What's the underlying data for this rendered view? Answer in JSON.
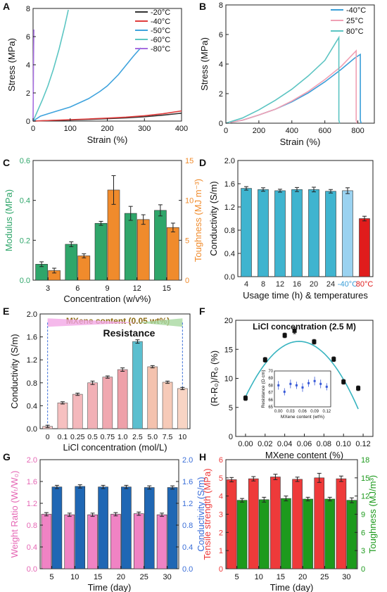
{
  "chart_data": [
    {
      "panel": "A",
      "type": "line",
      "xlabel": "Strain (%)",
      "ylabel": "Stress (MPa)",
      "xlim": [
        0,
        400
      ],
      "ylim": [
        0,
        8
      ],
      "xticks": [
        0,
        100,
        200,
        300,
        400
      ],
      "yticks": [
        0,
        2,
        4,
        6,
        8
      ],
      "legend": "top-right",
      "series": [
        {
          "name": "-20°C",
          "color": "#333333",
          "x": [
            0,
            50,
            100,
            150,
            200,
            250,
            300,
            350,
            400
          ],
          "y": [
            0,
            0.04,
            0.08,
            0.12,
            0.17,
            0.23,
            0.31,
            0.42,
            0.56
          ]
        },
        {
          "name": "-40°C",
          "color": "#e03c3c",
          "x": [
            0,
            50,
            100,
            150,
            200,
            250,
            300,
            350,
            400
          ],
          "y": [
            0,
            0.05,
            0.1,
            0.15,
            0.21,
            0.28,
            0.38,
            0.52,
            0.72
          ]
        },
        {
          "name": "-50°C",
          "color": "#3fa3dd",
          "x": [
            0,
            20,
            50,
            100,
            150,
            180,
            200,
            230,
            270,
            290
          ],
          "y": [
            0,
            0.35,
            0.6,
            1.0,
            1.6,
            2.1,
            2.5,
            3.3,
            4.6,
            5.2
          ]
        },
        {
          "name": "-60°C",
          "color": "#5cc6c3",
          "x": [
            0,
            10,
            25,
            40,
            55,
            70,
            85,
            95
          ],
          "y": [
            0,
            0.6,
            1.5,
            2.5,
            3.7,
            5.1,
            6.7,
            7.9
          ]
        },
        {
          "name": "-80°C",
          "color": "#a66ee0",
          "x": [
            0,
            0.5,
            1,
            1.5,
            2
          ],
          "y": [
            0,
            1.8,
            3.6,
            5.2,
            6.5
          ]
        }
      ]
    },
    {
      "panel": "B",
      "type": "line",
      "xlabel": "Strain (%)",
      "ylabel": "Stress (MPa)",
      "xlim": [
        0,
        900
      ],
      "ylim": [
        0,
        8
      ],
      "xticks": [
        0,
        200,
        400,
        600,
        800
      ],
      "yticks": [
        0,
        2,
        4,
        6,
        8
      ],
      "legend": "top-right",
      "series": [
        {
          "name": "-40°C",
          "color": "#3a9ed8",
          "x": [
            0,
            100,
            200,
            300,
            400,
            500,
            600,
            700,
            780,
            815,
            815,
            820
          ],
          "y": [
            0,
            0.2,
            0.55,
            0.95,
            1.45,
            2.05,
            2.8,
            3.65,
            4.4,
            4.65,
            0.2,
            0
          ]
        },
        {
          "name": "25°C",
          "color": "#f0a0b4",
          "x": [
            0,
            100,
            200,
            300,
            400,
            500,
            600,
            700,
            790,
            790,
            795
          ],
          "y": [
            0,
            0.2,
            0.55,
            0.95,
            1.5,
            2.15,
            2.95,
            3.85,
            4.9,
            0.2,
            0
          ]
        },
        {
          "name": "80°C",
          "color": "#5cc4c2",
          "x": [
            0,
            100,
            200,
            300,
            400,
            500,
            600,
            685,
            685,
            690
          ],
          "y": [
            0,
            0.35,
            0.9,
            1.55,
            2.3,
            3.2,
            4.25,
            5.8,
            0.2,
            0
          ]
        }
      ]
    },
    {
      "panel": "C",
      "type": "bar",
      "xlabel": "Concentration (w/v%)",
      "ylabel": "Modulus (MPa)",
      "y2label": "Toughness (MJ m⁻³)",
      "categories": [
        "3",
        "6",
        "9",
        "12",
        "15"
      ],
      "ylim": [
        0,
        0.6
      ],
      "y2lim": [
        0,
        15
      ],
      "yticks": [
        "0.0",
        "0.2",
        "0.4",
        "0.6"
      ],
      "y2ticks": [
        "0",
        "5",
        "10",
        "15"
      ],
      "series": [
        {
          "name": "Modulus",
          "axis": "left",
          "color": "#2fa66a",
          "values": [
            0.08,
            0.18,
            0.285,
            0.335,
            0.35
          ],
          "errors": [
            0.012,
            0.012,
            0.01,
            0.035,
            0.028
          ]
        },
        {
          "name": "Toughness",
          "axis": "right",
          "color": "#f08b2c",
          "values": [
            1.2,
            3.05,
            11.3,
            7.6,
            6.6
          ],
          "errors": [
            0.3,
            0.25,
            1.8,
            0.6,
            0.55
          ]
        }
      ]
    },
    {
      "panel": "D",
      "type": "bar",
      "xlabel": "Usage time (h) & temperatures",
      "ylabel": "Conductivity (S/m)",
      "categories": [
        "4",
        "8",
        "12",
        "16",
        "20",
        "24",
        "-40°C",
        "80°C"
      ],
      "category_colors": [
        "#3fb4cf",
        "#3fb4cf",
        "#3fb4cf",
        "#3fb4cf",
        "#3fb4cf",
        "#3fb4cf",
        "#9ad2f0",
        "#e01c1c"
      ],
      "label_colors": [
        "#222222",
        "#222222",
        "#222222",
        "#222222",
        "#222222",
        "#222222",
        "#3a9ed8",
        "#e01c1c"
      ],
      "ylim": [
        0,
        2.0
      ],
      "yticks": [
        "0.0",
        "0.4",
        "0.8",
        "1.2",
        "1.6",
        "2.0"
      ],
      "values": [
        1.52,
        1.5,
        1.48,
        1.5,
        1.5,
        1.47,
        1.48,
        1.0
      ],
      "errors": [
        0.03,
        0.03,
        0.025,
        0.035,
        0.04,
        0.03,
        0.05,
        0.04
      ]
    },
    {
      "panel": "E",
      "type": "bar",
      "xlabel": "LiCl concentration (mol/L)",
      "ylabel": "Conductivity (S/m)",
      "annotation": "MXene content (0.05 wt%)",
      "annotation2": "Resistance",
      "categories": [
        "0",
        "0.1",
        "0.25",
        "0.5",
        "0.75",
        "1.0",
        "2.5",
        "5.0",
        "7.5",
        "10"
      ],
      "ylim": [
        0,
        2.0
      ],
      "yticks": [
        "0.0",
        "0.4",
        "0.8",
        "1.2",
        "1.6",
        "2.0"
      ],
      "values": [
        0.04,
        0.45,
        0.6,
        0.8,
        0.9,
        1.03,
        1.52,
        1.08,
        0.81,
        0.7
      ],
      "errors": [
        0.02,
        0.02,
        0.02,
        0.03,
        0.02,
        0.03,
        0.03,
        0.02,
        0.02,
        0.02
      ],
      "bar_colors": [
        "#f6c8c8",
        "#f6c0c0",
        "#f4b8bc",
        "#f2b0b6",
        "#f0a8b0",
        "#eea0a9",
        "#5bbfcf",
        "#f4c2ae",
        "#f6cab8",
        "#f8d4c4"
      ]
    },
    {
      "panel": "F",
      "type": "scatter",
      "title": "LiCl concentration (2.5 M)",
      "xlabel": "MXene content (%)",
      "ylabel": "(R-R₀)/R₀ (%)",
      "xlim": [
        -0.01,
        0.13
      ],
      "ylim": [
        0,
        20
      ],
      "xticks": [
        "0.00",
        "0.02",
        "0.04",
        "0.06",
        "0.08",
        "0.10",
        "0.12"
      ],
      "yticks": [
        "0",
        "5",
        "10",
        "15",
        "20"
      ],
      "x": [
        0.0,
        0.02,
        0.04,
        0.05,
        0.07,
        0.09,
        0.1,
        0.115
      ],
      "y": [
        6.6,
        13.2,
        17.4,
        18.2,
        16.3,
        13.3,
        9.4,
        8.3
      ],
      "errors": [
        0.4,
        0.4,
        0.4,
        0.5,
        0.4,
        0.4,
        0.4,
        0.4
      ],
      "fit_color": "#38b4c0",
      "inset": {
        "xlabel": "MXene content (wt%)",
        "ylabel": "Resistance (Ω·cm)",
        "xticks": [
          "0.00",
          "0.03",
          "0.06",
          "0.09",
          "0.12"
        ],
        "yticks": [
          "65",
          "66",
          "67",
          "68",
          "69",
          "70"
        ],
        "x": [
          0.0,
          0.015,
          0.03,
          0.045,
          0.06,
          0.075,
          0.09,
          0.105,
          0.12
        ],
        "y": [
          68.0,
          67.1,
          68.2,
          68.0,
          67.7,
          68.3,
          68.6,
          68.2,
          67.8
        ],
        "errors": [
          0.6,
          0.5,
          0.6,
          0.5,
          0.6,
          0.5,
          0.6,
          0.6,
          0.5
        ]
      }
    },
    {
      "panel": "G",
      "type": "bar",
      "xlabel": "Time (day)",
      "ylabel": "Weight Ratio (Wₜ/W₀)",
      "y2label": "Conductivity (S/m)",
      "categories": [
        "5",
        "10",
        "15",
        "20",
        "25",
        "30"
      ],
      "ylim": [
        0,
        2.0
      ],
      "y2lim": [
        0,
        2.0
      ],
      "yticks": [
        "0.0",
        "0.4",
        "0.8",
        "1.2",
        "1.6",
        "2.0"
      ],
      "y2ticks": [
        "0.0",
        "0.4",
        "0.8",
        "1.2",
        "1.6",
        "2.0"
      ],
      "series": [
        {
          "name": "Weight Ratio",
          "axis": "left",
          "color": "#f083c4",
          "values": [
            1.0,
            0.99,
            0.99,
            1.0,
            1.01,
            0.99
          ],
          "errors": [
            0.03,
            0.03,
            0.03,
            0.03,
            0.03,
            0.03
          ]
        },
        {
          "name": "Conductivity",
          "axis": "right",
          "color": "#1f67b4",
          "values": [
            1.5,
            1.51,
            1.5,
            1.5,
            1.49,
            1.49
          ],
          "errors": [
            0.03,
            0.03,
            0.03,
            0.03,
            0.03,
            0.03
          ]
        }
      ]
    },
    {
      "panel": "H",
      "type": "bar",
      "xlabel": "Time (day)",
      "ylabel": "Tensile strength (MPa)",
      "y2label": "Toughness (MJ/m³)",
      "categories": [
        "5",
        "10",
        "15",
        "20",
        "25",
        "30"
      ],
      "ylim": [
        0,
        6
      ],
      "y2lim": [
        0,
        18
      ],
      "yticks": [
        "0",
        "1",
        "2",
        "3",
        "4",
        "5",
        "6"
      ],
      "y2ticks": [
        "0",
        "3",
        "6",
        "9",
        "12",
        "15",
        "18"
      ],
      "series": [
        {
          "name": "Tensile strength",
          "axis": "left",
          "color": "#ee3a3a",
          "values": [
            4.9,
            4.95,
            5.05,
            4.92,
            5.0,
            4.95
          ],
          "errors": [
            0.12,
            0.12,
            0.15,
            0.12,
            0.25,
            0.15
          ]
        },
        {
          "name": "Toughness",
          "axis": "right",
          "color": "#1d9a1d",
          "values": [
            11.3,
            11.4,
            11.6,
            11.5,
            11.5,
            11.3
          ],
          "errors": [
            0.3,
            0.4,
            0.4,
            0.3,
            0.3,
            0.4
          ]
        }
      ]
    }
  ]
}
